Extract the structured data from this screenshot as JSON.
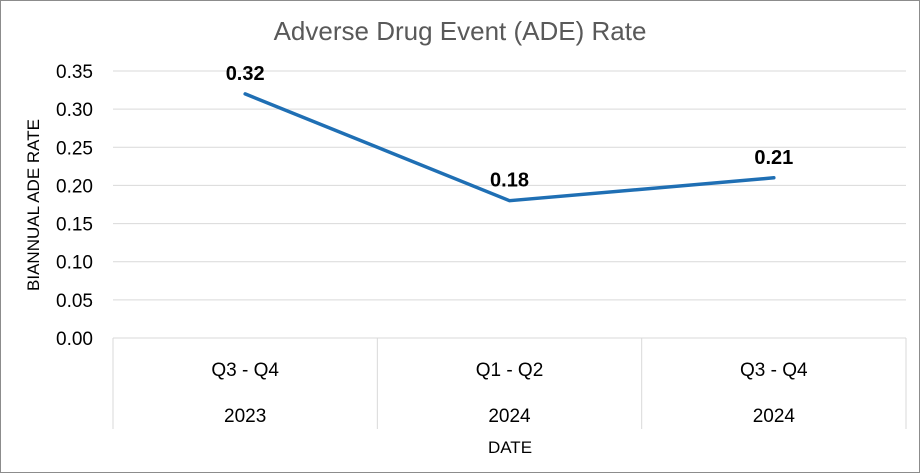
{
  "chart_data": {
    "type": "line",
    "title": "Adverse Drug Event (ADE) Rate",
    "xlabel": "DATE",
    "ylabel": "BIANNUAL ADE RATE",
    "categories": [
      {
        "period": "Q3 - Q4",
        "year": "2023"
      },
      {
        "period": "Q1 - Q2",
        "year": "2024"
      },
      {
        "period": "Q3 - Q4",
        "year": "2024"
      }
    ],
    "series": [
      {
        "values": [
          0.32,
          0.18,
          0.21
        ],
        "value_labels": [
          "0.32",
          "0.18",
          "0.21"
        ],
        "color": "#1f77b4"
      }
    ],
    "ylim": [
      0,
      0.35
    ],
    "yticks": [
      "0.00",
      "0.05",
      "0.10",
      "0.15",
      "0.20",
      "0.25",
      "0.30",
      "0.35"
    ],
    "grid": true,
    "legend": "none",
    "line_color": "#1f6fb4"
  }
}
